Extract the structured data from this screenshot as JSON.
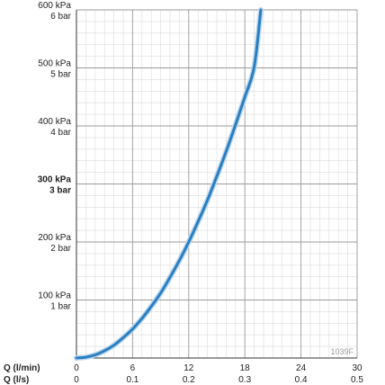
{
  "chart_data": {
    "type": "line",
    "title": "",
    "y_ticks": [
      {
        "value": 100,
        "kpa": "100 kPa",
        "bar": "1 bar"
      },
      {
        "value": 200,
        "kpa": "200 kPa",
        "bar": "2 bar"
      },
      {
        "value": 300,
        "kpa": "300 kPa",
        "bar": "3 bar",
        "bold": true
      },
      {
        "value": 400,
        "kpa": "400 kPa",
        "bar": "4 bar"
      },
      {
        "value": 500,
        "kpa": "500 kPa",
        "bar": "5 bar"
      },
      {
        "value": 600,
        "kpa": "600 kPa",
        "bar": "6 bar"
      }
    ],
    "x_axis_primary": {
      "label": "Q (l/min)",
      "ticks": [
        "0",
        "6",
        "12",
        "18",
        "24",
        "30"
      ],
      "values": [
        0,
        6,
        12,
        18,
        24,
        30
      ]
    },
    "x_axis_secondary": {
      "label": "Q (l/s)",
      "ticks": [
        "0",
        "0.1",
        "0.2",
        "0.3",
        "0.4",
        "0.5"
      ]
    },
    "xlim": [
      0,
      30
    ],
    "ylim": [
      0,
      600
    ],
    "grid": true,
    "figure_id": "1039F",
    "series": [
      {
        "color": "#2a7fc1",
        "x": [
          0,
          1,
          2,
          3,
          4,
          5,
          6,
          7,
          8,
          9,
          10,
          11,
          12,
          13,
          14,
          15,
          16,
          17,
          18,
          19,
          19.7
        ],
        "y": [
          0,
          1.4,
          5.5,
          12.5,
          22,
          35,
          50,
          68,
          89,
          112,
          139,
          168,
          200,
          235,
          272,
          313,
          356,
          402,
          450,
          502,
          600
        ]
      }
    ]
  }
}
